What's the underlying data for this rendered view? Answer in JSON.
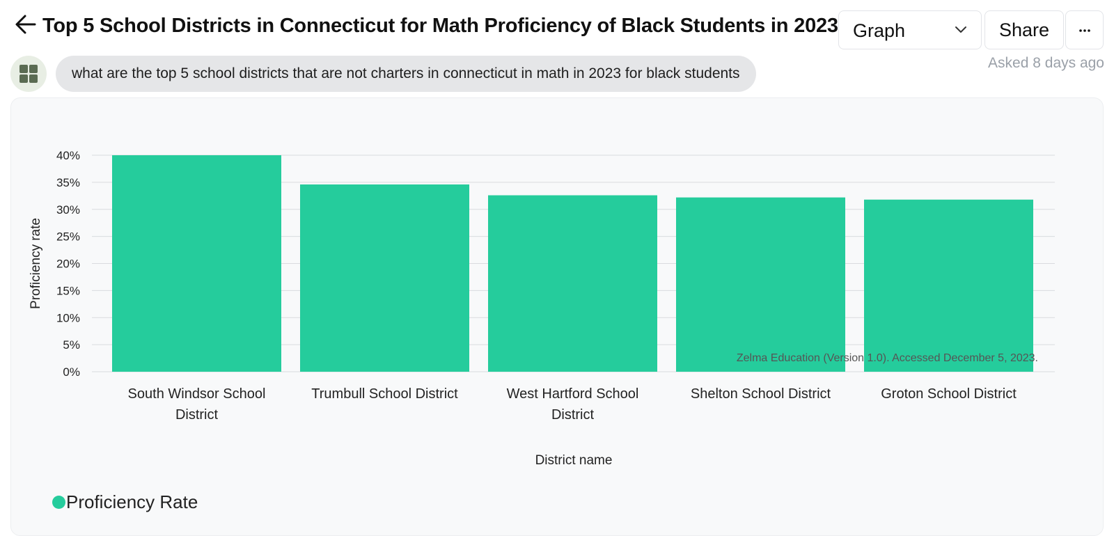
{
  "header": {
    "title": "Top 5 School Districts in Connecticut for Math Proficiency of Black Students in 2023",
    "view_select": "Graph",
    "share_label": "Share"
  },
  "question": {
    "text": "what are the top 5 school districts that are not charters in connecticut in math in 2023 for black students",
    "asked": "Asked 8 days ago"
  },
  "colors": {
    "bar": "#25cc9c",
    "grid": "#d9dbde",
    "axis_text": "#222222"
  },
  "icons": {
    "back": "arrow-left-icon",
    "select": "chevron-down-icon",
    "more": "ellipsis-icon",
    "avatar": "grid-icon"
  },
  "chart_data": {
    "type": "bar",
    "categories": [
      [
        "South Windsor School",
        "District"
      ],
      [
        "Trumbull School District"
      ],
      [
        "West Hartford School",
        "District"
      ],
      [
        "Shelton School District"
      ],
      [
        "Groton School District"
      ]
    ],
    "series": [
      {
        "name": "Proficiency Rate",
        "values": [
          40.0,
          34.6,
          32.6,
          32.2,
          31.8
        ]
      }
    ],
    "xlabel": "District name",
    "ylabel": "Proficiency rate",
    "ylim": [
      0,
      40
    ],
    "yticks": [
      "0%",
      "5%",
      "10%",
      "15%",
      "20%",
      "25%",
      "30%",
      "35%",
      "40%"
    ],
    "grid": true,
    "legend_position": "bottom-left",
    "annotation": "Zelma Education (Version 1.0). Accessed December 5, 2023."
  }
}
